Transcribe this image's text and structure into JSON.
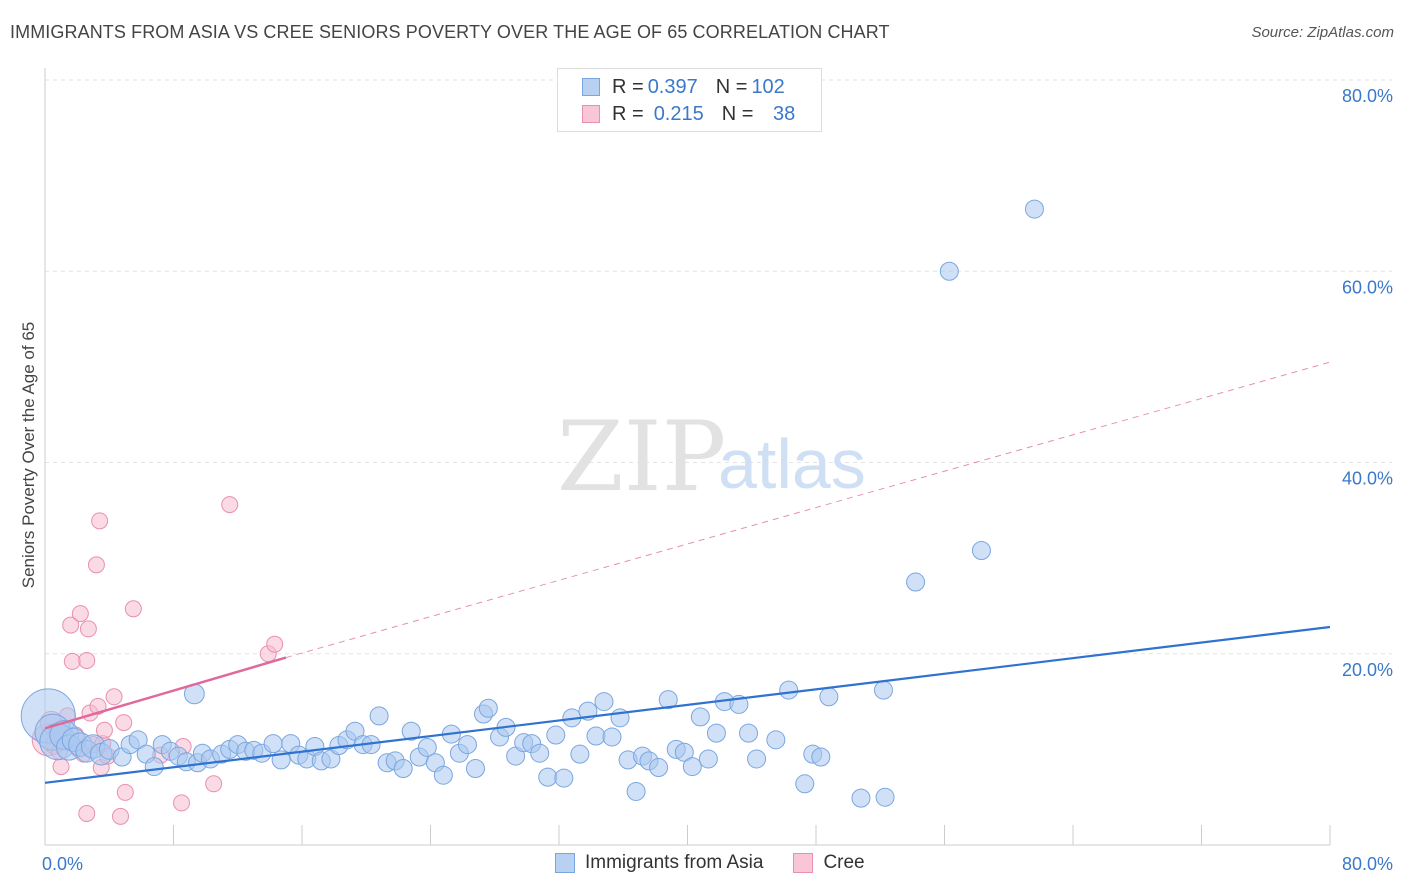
{
  "header": {
    "title": "IMMIGRANTS FROM ASIA VS CREE SENIORS POVERTY OVER THE AGE OF 65 CORRELATION CHART",
    "source": "Source: ZipAtlas.com"
  },
  "legend": {
    "rows": [
      {
        "r_label": "R = ",
        "r_value": "0.397",
        "n_label": "N = ",
        "n_value": "102"
      },
      {
        "r_label": "R = ",
        "r_value": "0.215",
        "n_label": "N = ",
        "n_value": " 38"
      }
    ]
  },
  "bottom_legend": {
    "items": [
      "Immigrants from Asia",
      "Cree"
    ]
  },
  "watermark": {
    "zip": "ZIP",
    "atlas": "atlas"
  },
  "colors": {
    "blue_fill": "#a9c8f0",
    "blue_stroke": "#7aa6e0",
    "blue_line": "#2f72d0",
    "pink_fill": "#f6bcd0",
    "pink_stroke": "#ea8fb0",
    "pink_line": "#e0699a",
    "tick_text": "#3b78c9",
    "grid": "#e3e3e3"
  },
  "chart_data": {
    "type": "scatter",
    "title": "IMMIGRANTS FROM ASIA VS CREE SENIORS POVERTY OVER THE AGE OF 65 CORRELATION CHART",
    "xlabel": "",
    "ylabel": "Seniors Poverty Over the Age of 65",
    "xlim": [
      0,
      80
    ],
    "ylim": [
      0,
      80
    ],
    "x_tick_labels": [
      "0.0%",
      "80.0%"
    ],
    "y_ticks": [
      20,
      40,
      60,
      80
    ],
    "y_tick_labels": [
      "20.0%",
      "40.0%",
      "60.0%",
      "80.0%"
    ],
    "series": [
      {
        "name": "Immigrants from Asia",
        "r": 0.397,
        "n": 102,
        "trend": {
          "x": [
            0,
            80
          ],
          "y": [
            6.5,
            22.8
          ],
          "style": "solid"
        },
        "points": [
          [
            0.2,
            13.5,
            3
          ],
          [
            0.5,
            11.8,
            2
          ],
          [
            0.8,
            10.8,
            2
          ],
          [
            1.2,
            11.5,
            1.6
          ],
          [
            1.5,
            10.2,
            1.4
          ],
          [
            1.8,
            11.0,
            1.3
          ],
          [
            2.2,
            10.5,
            1.3
          ],
          [
            2.6,
            9.8,
            1.2
          ],
          [
            3.0,
            10.3,
            1.3
          ],
          [
            3.5,
            9.5,
            1.2
          ],
          [
            4.0,
            10.0,
            1.1
          ],
          [
            4.8,
            9.2,
            1
          ],
          [
            5.3,
            10.5,
            1
          ],
          [
            5.8,
            11.0,
            1
          ],
          [
            6.3,
            9.5,
            1
          ],
          [
            6.8,
            8.2,
            1
          ],
          [
            7.3,
            10.5,
            1
          ],
          [
            7.8,
            9.8,
            1
          ],
          [
            8.3,
            9.3,
            1
          ],
          [
            8.8,
            8.7,
            1
          ],
          [
            9.3,
            15.8,
            1.1
          ],
          [
            9.5,
            8.6,
            1
          ],
          [
            9.8,
            9.6,
            1
          ],
          [
            10.3,
            9.0,
            1
          ],
          [
            11.0,
            9.5,
            1
          ],
          [
            11.5,
            10.0,
            1
          ],
          [
            12.0,
            10.5,
            1
          ],
          [
            12.5,
            9.8,
            1
          ],
          [
            13.0,
            9.9,
            1
          ],
          [
            13.5,
            9.6,
            1
          ],
          [
            14.2,
            10.6,
            1
          ],
          [
            14.7,
            8.9,
            1
          ],
          [
            15.3,
            10.6,
            1
          ],
          [
            15.8,
            9.4,
            1
          ],
          [
            16.3,
            9.0,
            1
          ],
          [
            16.8,
            10.3,
            1
          ],
          [
            17.2,
            8.8,
            1
          ],
          [
            17.8,
            9.0,
            1
          ],
          [
            18.3,
            10.4,
            1
          ],
          [
            18.8,
            11.0,
            1
          ],
          [
            19.3,
            11.9,
            1
          ],
          [
            19.8,
            10.5,
            1
          ],
          [
            20.3,
            10.5,
            1
          ],
          [
            20.8,
            13.5,
            1
          ],
          [
            21.3,
            8.6,
            1
          ],
          [
            21.8,
            8.8,
            1
          ],
          [
            22.3,
            8.0,
            1
          ],
          [
            22.8,
            11.9,
            1
          ],
          [
            23.3,
            9.2,
            1
          ],
          [
            23.8,
            10.2,
            1
          ],
          [
            24.3,
            8.6,
            1
          ],
          [
            24.8,
            7.3,
            1
          ],
          [
            25.3,
            11.6,
            1
          ],
          [
            25.8,
            9.6,
            1
          ],
          [
            26.3,
            10.5,
            1
          ],
          [
            26.8,
            8.0,
            1
          ],
          [
            27.3,
            13.7,
            1
          ],
          [
            27.6,
            14.3,
            1
          ],
          [
            28.3,
            11.3,
            1
          ],
          [
            28.7,
            12.3,
            1
          ],
          [
            29.3,
            9.3,
            1
          ],
          [
            29.8,
            10.7,
            1
          ],
          [
            30.3,
            10.6,
            1
          ],
          [
            30.8,
            9.6,
            1
          ],
          [
            31.3,
            7.1,
            1
          ],
          [
            31.8,
            11.5,
            1
          ],
          [
            32.3,
            7.0,
            1
          ],
          [
            32.8,
            13.3,
            1
          ],
          [
            33.3,
            9.5,
            1
          ],
          [
            33.8,
            14.0,
            1
          ],
          [
            34.3,
            11.4,
            1
          ],
          [
            34.8,
            15.0,
            1
          ],
          [
            35.3,
            11.3,
            1
          ],
          [
            35.8,
            13.3,
            1
          ],
          [
            36.3,
            8.9,
            1
          ],
          [
            36.8,
            5.6,
            1
          ],
          [
            37.2,
            9.3,
            1
          ],
          [
            37.6,
            8.8,
            1
          ],
          [
            38.2,
            8.1,
            1
          ],
          [
            38.8,
            15.2,
            1
          ],
          [
            39.3,
            10.0,
            1
          ],
          [
            39.8,
            9.7,
            1
          ],
          [
            40.3,
            8.2,
            1
          ],
          [
            40.8,
            13.4,
            1
          ],
          [
            41.3,
            9.0,
            1
          ],
          [
            41.8,
            11.7,
            1
          ],
          [
            42.3,
            15.0,
            1
          ],
          [
            43.2,
            14.7,
            1
          ],
          [
            43.8,
            11.7,
            1
          ],
          [
            44.3,
            9.0,
            1
          ],
          [
            45.5,
            11.0,
            1
          ],
          [
            46.3,
            16.2,
            1
          ],
          [
            47.3,
            6.4,
            1
          ],
          [
            47.8,
            9.5,
            1
          ],
          [
            48.3,
            9.2,
            1
          ],
          [
            48.8,
            15.5,
            1
          ],
          [
            50.8,
            4.9,
            1
          ],
          [
            52.2,
            16.2,
            1
          ],
          [
            52.3,
            5.0,
            1
          ],
          [
            54.2,
            27.5,
            1
          ],
          [
            56.3,
            60.0,
            1
          ],
          [
            58.3,
            30.8,
            1
          ],
          [
            61.6,
            66.5,
            1
          ]
        ]
      },
      {
        "name": "Cree",
        "r": 0.215,
        "n": 38,
        "trend_solid": {
          "x": [
            0,
            15.0
          ],
          "y": [
            12.2,
            19.6
          ]
        },
        "trend_dashed": {
          "x": [
            15.0,
            80
          ],
          "y": [
            19.6,
            50.5
          ]
        },
        "points": [
          [
            0.2,
            11.0,
            2
          ],
          [
            0.4,
            12.8,
            1.4
          ],
          [
            0.6,
            10.5,
            1.2
          ],
          [
            0.8,
            11.8,
            1.2
          ],
          [
            1.0,
            8.2,
            1
          ],
          [
            1.2,
            11.0,
            1.1
          ],
          [
            1.4,
            13.5,
            1
          ],
          [
            1.6,
            23.0,
            1
          ],
          [
            1.7,
            19.2,
            1
          ],
          [
            1.9,
            11.5,
            1
          ],
          [
            2.1,
            10.0,
            1
          ],
          [
            2.2,
            24.2,
            1
          ],
          [
            2.4,
            9.5,
            1
          ],
          [
            2.6,
            19.3,
            1
          ],
          [
            2.6,
            3.3,
            1
          ],
          [
            2.7,
            22.6,
            1
          ],
          [
            2.8,
            13.8,
            1
          ],
          [
            3.0,
            10.5,
            1
          ],
          [
            3.2,
            29.3,
            1
          ],
          [
            3.3,
            14.5,
            1
          ],
          [
            3.4,
            33.9,
            1
          ],
          [
            3.5,
            8.1,
            1
          ],
          [
            3.6,
            10.6,
            1
          ],
          [
            3.7,
            12.0,
            1
          ],
          [
            3.9,
            9.3,
            1
          ],
          [
            4.3,
            15.5,
            1
          ],
          [
            4.7,
            3.0,
            1
          ],
          [
            4.9,
            12.8,
            1
          ],
          [
            5.0,
            5.5,
            1
          ],
          [
            5.5,
            24.7,
            1
          ],
          [
            7.2,
            9.4,
            1
          ],
          [
            8.5,
            4.4,
            1
          ],
          [
            8.6,
            10.3,
            1
          ],
          [
            10.5,
            6.4,
            1
          ],
          [
            11.5,
            35.6,
            1
          ],
          [
            13.9,
            20.0,
            1
          ],
          [
            14.3,
            21.0,
            1
          ],
          [
            0.9,
            9.8,
            1
          ]
        ]
      }
    ]
  }
}
